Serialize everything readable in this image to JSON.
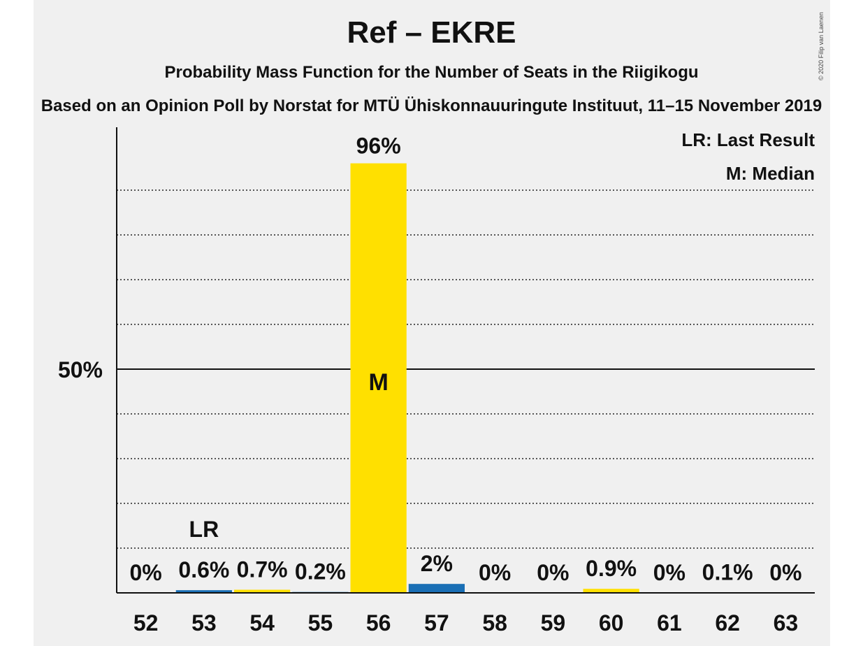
{
  "title": "Ref – EKRE",
  "subtitle": "Probability Mass Function for the Number of Seats in the Riigikogu",
  "subsubtitle": "Based on an Opinion Poll by Norstat for MTÜ Ühiskonnauuringute Instituut, 11–15 November 2019",
  "copyright": "© 2020 Filip van Laenen",
  "legend": {
    "last_result": "LR: Last Result",
    "median": "M: Median"
  },
  "colors": {
    "median_bar": "#ffe000",
    "other_bar": "#1a6fb5",
    "background": "#f0f0f0"
  },
  "chart_data": {
    "type": "bar",
    "categories": [
      "52",
      "53",
      "54",
      "55",
      "56",
      "57",
      "58",
      "59",
      "60",
      "61",
      "62",
      "63"
    ],
    "values": [
      0,
      0.6,
      0.7,
      0.2,
      96,
      2,
      0,
      0,
      0.9,
      0,
      0.1,
      0
    ],
    "value_labels": [
      "0%",
      "0.6%",
      "0.7%",
      "0.2%",
      "96%",
      "2%",
      "0%",
      "0%",
      "0.9%",
      "0%",
      "0.1%",
      "0%"
    ],
    "bar_colors": [
      "#1a6fb5",
      "#1a6fb5",
      "#ffe000",
      "#1a6fb5",
      "#ffe000",
      "#1a6fb5",
      "#1a6fb5",
      "#1a6fb5",
      "#ffe000",
      "#1a6fb5",
      "#1a6fb5",
      "#1a6fb5"
    ],
    "ylim": [
      0,
      100
    ],
    "y_tick_label": "50%",
    "y_tick_value": 50,
    "grid_step": 10,
    "last_result_seat": "53",
    "last_result_label": "LR",
    "median_seat": "56",
    "median_label": "M",
    "legend_position": "top-right"
  }
}
